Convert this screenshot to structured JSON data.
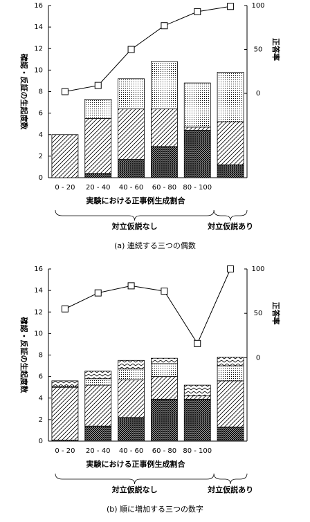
{
  "chart_data": [
    {
      "type": "bar",
      "stacked": true,
      "title": "(a) 連続する三つの偶数",
      "y_label": "確認・反証の生起度数",
      "y2_label": "正答率",
      "x_label": "実験における正事例生成割合",
      "annotations": [
        "対立仮説なし",
        "対立仮説あり"
      ],
      "categories": [
        "0 - 20",
        "20 - 40",
        "40 - 60",
        "60 - 80",
        "80 - 100",
        null
      ],
      "ylim": [
        0,
        16
      ],
      "yticks": [
        0,
        2,
        4,
        6,
        8,
        10,
        12,
        14,
        16
      ],
      "y2lim": [
        -96,
        100
      ],
      "y2ticks": [
        0,
        50,
        100
      ],
      "series": [
        {
          "pattern": "crosshatch",
          "color": "#000000",
          "values": [
            0,
            0.4,
            1.7,
            2.9,
            4.4,
            1.2
          ]
        },
        {
          "pattern": "diagonal",
          "color": "#000000",
          "values": [
            4.0,
            5.1,
            4.7,
            3.5,
            0.3,
            4.0
          ]
        },
        {
          "pattern": "dots",
          "color": "#000000",
          "values": [
            0,
            1.8,
            2.8,
            4.4,
            4.1,
            4.6
          ]
        },
        {
          "type": "line",
          "axis": "y2",
          "marker": "square",
          "color": "#000000",
          "values": [
            2,
            9,
            50,
            77,
            93,
            99
          ]
        }
      ]
    },
    {
      "type": "bar",
      "stacked": true,
      "title": "(b) 順に増加する三つの数字",
      "y_label": "確認・反証の生起度数",
      "y2_label": "正答率",
      "x_label": "実験における正事例生成割合",
      "annotations": [
        "対立仮説なし",
        "対立仮説あり"
      ],
      "categories": [
        "0 - 20",
        "20 - 40",
        "40 - 60",
        "60 - 80",
        "80 - 100",
        null
      ],
      "ylim": [
        0,
        16
      ],
      "yticks": [
        0,
        2,
        4,
        6,
        8,
        10,
        12,
        14,
        16
      ],
      "y2lim": [
        -94,
        100
      ],
      "y2ticks": [
        0,
        50,
        100
      ],
      "series": [
        {
          "pattern": "crosshatch",
          "color": "#000000",
          "values": [
            0.1,
            1.4,
            2.2,
            3.9,
            3.9,
            1.3
          ]
        },
        {
          "pattern": "diagonal",
          "color": "#000000",
          "values": [
            4.9,
            3.8,
            3.5,
            2.1,
            0.3,
            4.3
          ]
        },
        {
          "pattern": "dots",
          "color": "#000000",
          "values": [
            0.1,
            0.6,
            1.0,
            1.2,
            0,
            1.4
          ]
        },
        {
          "pattern": "zigzag",
          "color": "#000000",
          "values": [
            0.5,
            0.7,
            0.8,
            0.5,
            1.0,
            0.8
          ]
        },
        {
          "type": "line",
          "axis": "y2",
          "marker": "square",
          "color": "#000000",
          "values": [
            55,
            73,
            81,
            75,
            16,
            100
          ]
        }
      ]
    }
  ]
}
